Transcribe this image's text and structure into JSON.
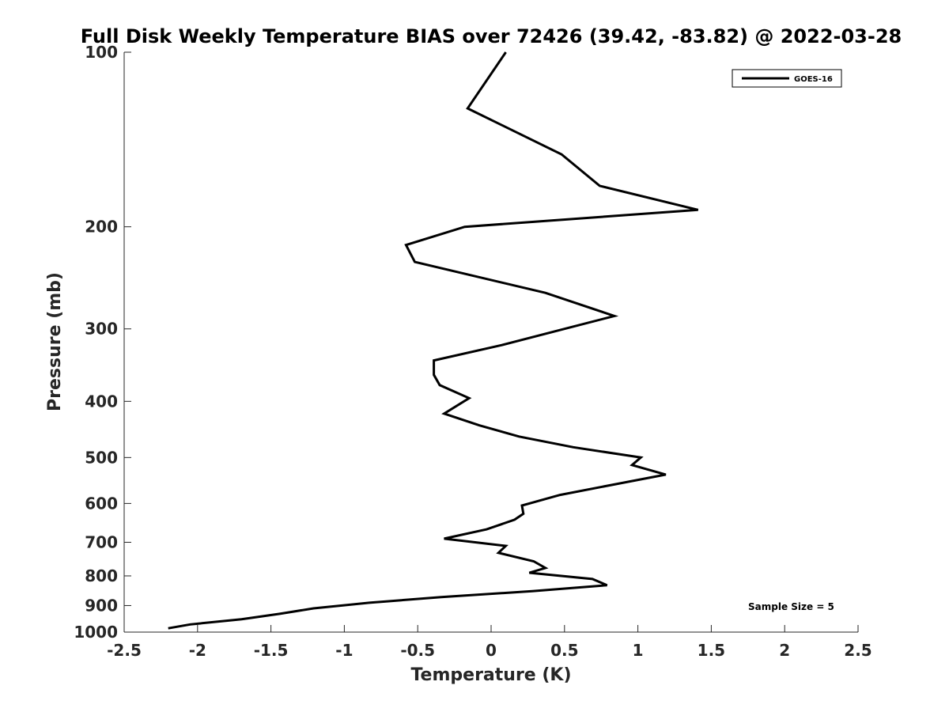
{
  "chart_data": {
    "type": "line",
    "title": "Full Disk Weekly Temperature BIAS over 72426 (39.42, -83.82) @ 2022-03-28",
    "xlabel": "Temperature (K)",
    "ylabel": "Pressure (mb)",
    "xlim": [
      -2.5,
      2.5
    ],
    "ylim": [
      100,
      1000
    ],
    "y_scale": "log",
    "y_reversed": true,
    "x_ticks": [
      -2.5,
      -2,
      -1.5,
      -1,
      -0.5,
      0,
      0.5,
      1,
      1.5,
      2,
      2.5
    ],
    "x_tick_labels": [
      "-2.5",
      "-2",
      "-1.5",
      "-1",
      "-0.5",
      "0",
      "0.5",
      "1",
      "1.5",
      "2",
      "2.5"
    ],
    "y_ticks": [
      100,
      200,
      300,
      400,
      500,
      600,
      700,
      800,
      900,
      1000
    ],
    "y_tick_labels": [
      "100",
      "200",
      "300",
      "400",
      "500",
      "600",
      "700",
      "800",
      "900",
      "1000"
    ],
    "grid": false,
    "legend_position": "top-right",
    "series": [
      {
        "name": "GOES-16",
        "color": "#000000",
        "points": [
          [
            0.1,
            100
          ],
          [
            -0.16,
            125
          ],
          [
            0.48,
            150
          ],
          [
            0.74,
            170
          ],
          [
            1.41,
            187
          ],
          [
            -0.18,
            200
          ],
          [
            -0.58,
            215
          ],
          [
            -0.52,
            230
          ],
          [
            0.37,
            260
          ],
          [
            0.84,
            285
          ],
          [
            0.5,
            300
          ],
          [
            0.07,
            320
          ],
          [
            -0.39,
            340
          ],
          [
            -0.39,
            360
          ],
          [
            -0.35,
            375
          ],
          [
            -0.15,
            395
          ],
          [
            -0.32,
            420
          ],
          [
            -0.08,
            440
          ],
          [
            0.19,
            460
          ],
          [
            0.56,
            480
          ],
          [
            1.02,
            500
          ],
          [
            0.96,
            515
          ],
          [
            1.19,
            535
          ],
          [
            0.86,
            555
          ],
          [
            0.47,
            580
          ],
          [
            0.21,
            605
          ],
          [
            0.22,
            625
          ],
          [
            0.16,
            640
          ],
          [
            -0.03,
            665
          ],
          [
            -0.32,
            690
          ],
          [
            0.1,
            710
          ],
          [
            0.05,
            730
          ],
          [
            0.29,
            755
          ],
          [
            0.37,
            775
          ],
          [
            0.26,
            790
          ],
          [
            0.69,
            810
          ],
          [
            0.79,
            830
          ],
          [
            0.28,
            850
          ],
          [
            -0.34,
            870
          ],
          [
            -0.83,
            890
          ],
          [
            -1.21,
            910
          ],
          [
            -1.44,
            930
          ],
          [
            -1.7,
            950
          ],
          [
            -2.05,
            970
          ],
          [
            -2.2,
            985
          ]
        ]
      }
    ],
    "annotations": [
      {
        "text": "Sample Size = 5",
        "position": "bottom-right"
      }
    ]
  }
}
